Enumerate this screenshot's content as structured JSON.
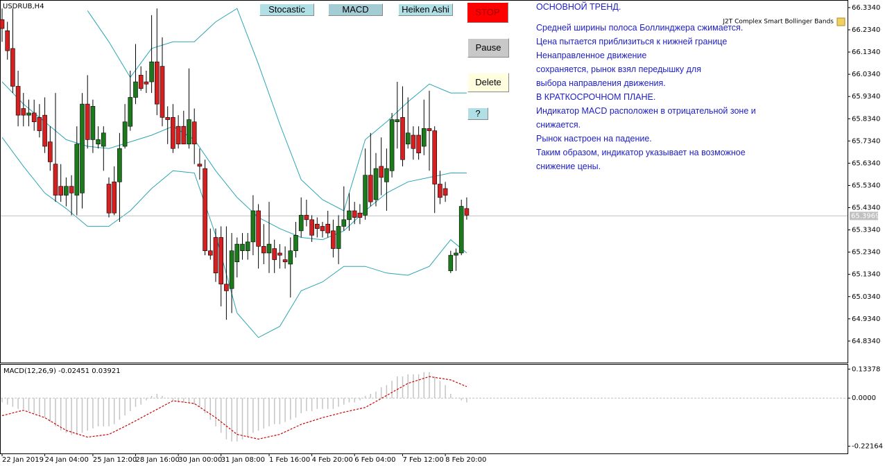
{
  "chart_data": [
    {
      "type": "candlestick",
      "title": "USDRUB,H4",
      "categories": [
        "22 Jan 2019",
        null,
        null,
        null,
        null,
        null,
        null,
        null,
        "24 Jan 04:00",
        null,
        null,
        null,
        null,
        null,
        null,
        null,
        null,
        "25 Jan 12:00",
        null,
        null,
        null,
        null,
        null,
        null,
        null,
        "28 Jan 16:00",
        null,
        null,
        null,
        null,
        null,
        null,
        null,
        "30 Jan 00:00",
        null,
        null,
        null,
        null,
        null,
        null,
        null,
        "31 Jan 08:00",
        null,
        null,
        null,
        null,
        null,
        null,
        null,
        null,
        "1 Feb 16:00",
        null,
        null,
        null,
        null,
        null,
        null,
        null,
        "4 Feb 20:00",
        null,
        null,
        null,
        null,
        null,
        null,
        null,
        "6 Feb 04:00",
        null,
        null,
        null,
        null,
        null,
        null,
        null,
        null,
        "7 Feb 12:00",
        null,
        null,
        null,
        null,
        null,
        null,
        null,
        "8 Feb 20:00",
        null,
        null,
        null,
        null
      ],
      "open": [
        66.28,
        66.23,
        66.15,
        65.98,
        65.88,
        65.85,
        65.86,
        65.84,
        65.85,
        65.73,
        65.63,
        65.53,
        65.49,
        65.53,
        65.49,
        65.5,
        65.9,
        65.74,
        65.72,
        65.71,
        65.54,
        65.55,
        65.55,
        65.71,
        65.8,
        65.93,
        66.03,
        66.0,
        66.0,
        66.09,
        66.07,
        65.84,
        65.84,
        65.8,
        65.8,
        65.72,
        65.82,
        65.63,
        65.61,
        65.24,
        65.3,
        65.3,
        65.09,
        65.07,
        65.19,
        65.24,
        65.24,
        65.28,
        65.42,
        65.26,
        65.23,
        65.25,
        65.23,
        65.2,
        65.18,
        65.24,
        65.33,
        65.4,
        65.38,
        65.36,
        65.35,
        65.36,
        65.33,
        65.25,
        65.35,
        65.38,
        65.42,
        65.41,
        65.4,
        65.58,
        65.47,
        65.62,
        65.55,
        65.6,
        65.82,
        65.84,
        65.72,
        65.76,
        65.76,
        65.71,
        65.79,
        65.78,
        65.54,
        65.52,
        65.15,
        65.22,
        65.23,
        65.43
      ],
      "high": [
        66.33,
        66.27,
        66.33,
        66.05,
        65.95,
        65.92,
        65.92,
        65.9,
        65.93,
        65.8,
        65.95,
        65.63,
        65.57,
        65.58,
        65.8,
        65.95,
        66.03,
        65.92,
        65.8,
        65.8,
        65.57,
        65.62,
        65.77,
        65.9,
        66.05,
        66.17,
        66.07,
        66.05,
        66.3,
        66.33,
        66.2,
        65.89,
        65.9,
        65.85,
        65.87,
        66.06,
        65.88,
        65.7,
        65.65,
        65.34,
        65.34,
        65.35,
        65.35,
        65.32,
        65.3,
        65.32,
        65.32,
        65.49,
        65.45,
        65.36,
        65.46,
        65.29,
        65.27,
        65.26,
        65.3,
        65.37,
        65.48,
        65.47,
        65.4,
        65.39,
        65.37,
        65.42,
        65.38,
        65.4,
        65.53,
        65.5,
        65.46,
        65.45,
        65.7,
        65.77,
        65.68,
        65.75,
        65.7,
        65.86,
        66.0,
        65.98,
        65.93,
        65.8,
        65.8,
        65.92,
        65.96,
        65.8,
        65.6,
        65.55,
        65.24,
        65.25,
        65.47,
        65.48
      ],
      "low": [
        66.18,
        66.1,
        65.95,
        65.8,
        65.8,
        65.8,
        65.78,
        65.75,
        65.68,
        65.6,
        65.46,
        65.46,
        65.44,
        65.4,
        65.4,
        65.43,
        65.7,
        65.68,
        65.7,
        65.6,
        65.39,
        65.4,
        65.37,
        65.7,
        65.78,
        65.9,
        65.96,
        65.95,
        65.95,
        65.85,
        65.8,
        65.72,
        65.68,
        65.7,
        65.72,
        65.7,
        65.63,
        65.56,
        65.22,
        65.2,
        65.1,
        64.99,
        64.93,
        64.96,
        65.12,
        65.2,
        65.2,
        65.22,
        65.16,
        65.18,
        65.14,
        65.14,
        65.16,
        65.16,
        65.03,
        65.21,
        65.3,
        65.35,
        65.28,
        65.3,
        65.3,
        65.3,
        65.21,
        65.18,
        65.33,
        65.33,
        65.36,
        65.36,
        65.38,
        65.44,
        65.44,
        65.49,
        65.42,
        65.57,
        65.7,
        65.62,
        65.7,
        65.65,
        65.65,
        65.67,
        65.6,
        65.41,
        65.45,
        65.46,
        65.14,
        65.15,
        65.22,
        65.38
      ],
      "close": [
        66.24,
        66.14,
        65.98,
        65.85,
        65.85,
        65.86,
        65.82,
        65.78,
        65.71,
        65.64,
        65.49,
        65.49,
        65.53,
        65.5,
        65.72,
        65.9,
        65.74,
        65.89,
        65.74,
        65.77,
        65.41,
        65.41,
        65.7,
        65.82,
        65.93,
        66.0,
        65.97,
        65.99,
        66.09,
        65.9,
        65.84,
        65.83,
        65.7,
        65.72,
        65.72,
        65.83,
        65.72,
        65.62,
        65.24,
        65.22,
        65.14,
        65.09,
        65.06,
        65.24,
        65.27,
        65.27,
        65.28,
        65.42,
        65.26,
        65.23,
        65.27,
        65.2,
        65.22,
        65.19,
        65.24,
        65.31,
        65.4,
        65.38,
        65.31,
        65.34,
        65.33,
        65.32,
        65.25,
        65.35,
        65.38,
        65.42,
        65.39,
        65.39,
        65.58,
        65.46,
        65.61,
        65.57,
        65.61,
        65.83,
        65.83,
        65.65,
        65.77,
        65.7,
        65.68,
        65.79,
        65.78,
        65.54,
        65.48,
        65.49,
        65.22,
        65.23,
        65.44,
        65.4
      ],
      "up_color": "#1c7a1c",
      "down_color": "#d42020",
      "wick_color": "#000000",
      "ylim": [
        64.737,
        66.365
      ],
      "yticks": [
        {
          "value": 66.334,
          "label": "66.3340"
        },
        {
          "value": 66.234,
          "label": "66.2340"
        },
        {
          "value": 66.134,
          "label": "66.1340"
        },
        {
          "value": 66.034,
          "label": "66.0340"
        },
        {
          "value": 65.934,
          "label": "65.9340"
        },
        {
          "value": 65.834,
          "label": "65.8340"
        },
        {
          "value": 65.734,
          "label": "65.7340"
        },
        {
          "value": 65.634,
          "label": "65.6340"
        },
        {
          "value": 65.534,
          "label": "65.5340"
        },
        {
          "value": 65.434,
          "label": "65.4340"
        },
        {
          "value": 65.334,
          "label": "65.3340"
        },
        {
          "value": 65.234,
          "label": "65.2340"
        },
        {
          "value": 65.134,
          "label": "65.1340"
        },
        {
          "value": 65.034,
          "label": "65.0340"
        },
        {
          "value": 64.934,
          "label": "64.9340"
        },
        {
          "value": 64.834,
          "label": "64.8340"
        }
      ],
      "last_price": 65.3969,
      "bands": {
        "label": "J2T Complex Smart Bollinger Bands",
        "color": "#2aa5b5",
        "x": [
          0,
          4,
          8,
          12,
          16,
          20,
          24,
          28,
          32,
          36,
          40,
          44,
          48,
          52,
          56,
          60,
          64,
          68,
          72,
          76,
          80,
          84,
          87
        ],
        "series": [
          {
            "values": [
              null,
              null,
              null,
              null,
              66.32,
              66.18,
              66.02,
              66.15,
              66.18,
              66.18,
              66.27,
              66.33,
              66.08,
              65.81,
              65.56,
              65.47,
              65.42,
              65.74,
              65.82,
              65.91,
              65.99,
              65.95,
              65.95
            ]
          },
          {
            "values": [
              66.0,
              65.9,
              65.82,
              65.74,
              65.71,
              65.7,
              65.73,
              65.76,
              65.8,
              65.74,
              65.6,
              65.48,
              65.39,
              65.34,
              65.3,
              65.29,
              65.33,
              65.42,
              65.5,
              65.55,
              65.57,
              65.59,
              65.59
            ]
          },
          {
            "values": [
              65.75,
              65.62,
              65.5,
              65.43,
              65.35,
              65.35,
              65.42,
              65.52,
              65.6,
              65.59,
              65.31,
              64.96,
              64.85,
              64.9,
              65.06,
              65.1,
              65.17,
              65.17,
              65.14,
              65.13,
              65.17,
              65.29,
              65.23
            ]
          }
        ]
      }
    },
    {
      "type": "macd",
      "title": "MACD(12,26,9) -0.02451 0.03921",
      "values": [
        -0.02,
        -0.03,
        -0.04,
        -0.05,
        -0.05,
        -0.06,
        -0.07,
        -0.08,
        -0.09,
        -0.11,
        -0.13,
        -0.15,
        -0.16,
        -0.17,
        -0.17,
        -0.16,
        -0.15,
        -0.14,
        -0.13,
        -0.13,
        -0.13,
        -0.12,
        -0.1,
        -0.08,
        -0.06,
        -0.04,
        -0.03,
        -0.01,
        0.01,
        0.02,
        0.01,
        0.0,
        -0.01,
        -0.02,
        -0.02,
        -0.02,
        -0.03,
        -0.04,
        -0.07,
        -0.1,
        -0.13,
        -0.16,
        -0.19,
        -0.2,
        -0.2,
        -0.19,
        -0.18,
        -0.16,
        -0.15,
        -0.14,
        -0.13,
        -0.12,
        -0.12,
        -0.11,
        -0.1,
        -0.09,
        -0.07,
        -0.06,
        -0.06,
        -0.05,
        -0.05,
        -0.05,
        -0.05,
        -0.04,
        -0.03,
        -0.02,
        -0.02,
        -0.01,
        0.01,
        0.02,
        0.03,
        0.05,
        0.06,
        0.08,
        0.1,
        0.1,
        0.11,
        0.11,
        0.11,
        0.12,
        0.12,
        0.1,
        0.08,
        0.06,
        0.02,
        0.0,
        -0.01,
        -0.02
      ],
      "color": "#c4c4c4",
      "signal": {
        "color": "#cc0000",
        "x": [
          0,
          4,
          8,
          12,
          16,
          20,
          24,
          28,
          32,
          36,
          40,
          44,
          48,
          52,
          56,
          60,
          64,
          68,
          72,
          76,
          80,
          84,
          87
        ],
        "values": [
          -0.081,
          -0.056,
          -0.09,
          -0.149,
          -0.18,
          -0.167,
          -0.118,
          -0.065,
          -0.012,
          -0.025,
          -0.09,
          -0.167,
          -0.189,
          -0.167,
          -0.121,
          -0.09,
          -0.065,
          -0.043,
          0.012,
          0.068,
          0.099,
          0.084,
          0.053
        ]
      },
      "ylim": [
        -0.255,
        0.154
      ],
      "yticks": [
        0.13378,
        {
          "value": 0,
          "label": "0.0000"
        },
        -0.22164
      ]
    }
  ],
  "buttons": [
    "Stocastic",
    "MACD",
    "Heiken Ashi",
    "STOP",
    "Pause",
    "Delete",
    "?"
  ],
  "commentary": [
    "ОСНОВНОЙ ТРЕНД.",
    "Средней ширины полоса Боллинджера сжимается.",
    "Цена пытается приблизиться к нижней границе",
    "Ненаправленное движение",
    "сохраняется, рынок взял передышку для",
    "выбора направления движения.",
    "В КРАТКОСРОЧНОМ ПЛАНЕ.",
    "Индикатор MACD расположен в отрицательной зоне и",
    "снижается.",
    "Рынок настроен на падение.",
    "Таким образом, индикатор указывает на возможное",
    "снижение цены."
  ]
}
